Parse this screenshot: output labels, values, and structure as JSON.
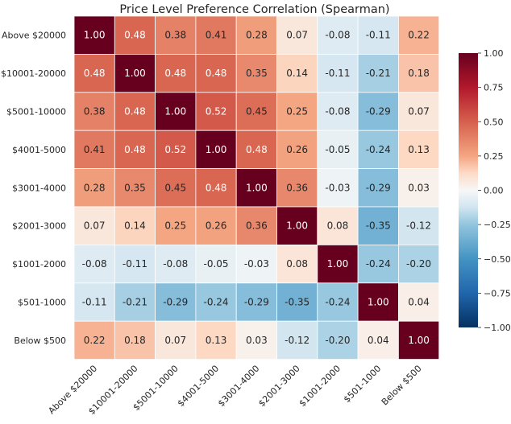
{
  "chart_data": {
    "type": "heatmap",
    "title": "Price Level Preference Correlation (Spearman)",
    "rows": [
      "Above $20000",
      "$10001-20000",
      "$5001-10000",
      "$4001-5000",
      "$3001-4000",
      "$2001-3000",
      "$1001-2000",
      "$501-1000",
      "Below $500"
    ],
    "columns": [
      "Above $20000",
      "$10001-20000",
      "$5001-10000",
      "$4001-5000",
      "$3001-4000",
      "$2001-3000",
      "$1001-2000",
      "$501-1000",
      "Below $500"
    ],
    "values": [
      [
        1.0,
        0.48,
        0.38,
        0.41,
        0.28,
        0.07,
        -0.08,
        -0.11,
        0.22
      ],
      [
        0.48,
        1.0,
        0.48,
        0.48,
        0.35,
        0.14,
        -0.11,
        -0.21,
        0.18
      ],
      [
        0.38,
        0.48,
        1.0,
        0.52,
        0.45,
        0.25,
        -0.08,
        -0.29,
        0.07
      ],
      [
        0.41,
        0.48,
        0.52,
        1.0,
        0.48,
        0.26,
        -0.05,
        -0.24,
        0.13
      ],
      [
        0.28,
        0.35,
        0.45,
        0.48,
        1.0,
        0.36,
        -0.03,
        -0.29,
        0.03
      ],
      [
        0.07,
        0.14,
        0.25,
        0.26,
        0.36,
        1.0,
        0.08,
        -0.35,
        -0.12
      ],
      [
        -0.08,
        -0.11,
        -0.08,
        -0.05,
        -0.03,
        0.08,
        1.0,
        -0.24,
        -0.2
      ],
      [
        -0.11,
        -0.21,
        -0.29,
        -0.24,
        -0.29,
        -0.35,
        -0.24,
        1.0,
        0.04
      ],
      [
        0.22,
        0.18,
        0.07,
        0.13,
        0.03,
        -0.12,
        -0.2,
        0.04,
        1.0
      ]
    ],
    "colormap": "RdBu_r",
    "vmin": -1.0,
    "vmax": 1.0,
    "colorbar_ticks": [
      "1.00",
      "0.75",
      "0.50",
      "0.25",
      "0.00",
      "−0.25",
      "−0.50",
      "−0.75",
      "−1.00"
    ],
    "colorbar_tick_values": [
      1.0,
      0.75,
      0.5,
      0.25,
      0.0,
      -0.25,
      -0.5,
      -0.75,
      -1.0
    ],
    "annotation_format": "0.00",
    "xtick_rotation": "45deg",
    "colorbar_position": "right"
  }
}
